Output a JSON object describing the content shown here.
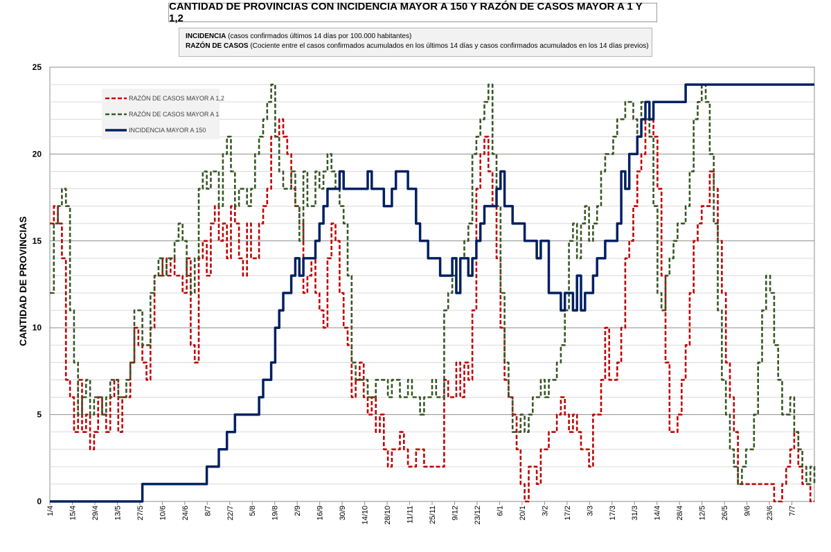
{
  "chart_data": {
    "type": "line",
    "title": "CANTIDAD DE PROVINCIAS CON INCIDENCIA MAYOR A 150 Y RAZÓN DE CASOS MAYOR A 1 Y 1,2",
    "notes": {
      "incidencia_name": "INCIDENCIA",
      "incidencia_desc": " (casos confirmados últimos 14 días por 100.000  habitantes)",
      "razon_name": "RAZÓN DE CASOS",
      "razon_desc": " (Cociente entre el casos confirmados acumulados en los últimos 14 días y casos confirmados acumulados en los 14 días previos)"
    },
    "xlabel": "",
    "ylabel": "CANTIDAD DE PROVINCIAS",
    "ylim": [
      0,
      25
    ],
    "yticks": [
      0,
      5,
      10,
      15,
      20,
      25
    ],
    "grid": true,
    "legend_position": "top-left",
    "x_tick_labels": [
      "1/4",
      "15/4",
      "29/4",
      "13/5",
      "27/5",
      "10/6",
      "24/6",
      "8/7",
      "22/7",
      "5/8",
      "19/8",
      "2/9",
      "16/9",
      "30/9",
      "14/10",
      "28/10",
      "11/11",
      "25/11",
      "9/12",
      "23/12",
      "6/1",
      "20/1",
      "3/2",
      "17/2",
      "3/3",
      "17/3",
      "31/3",
      "14/4",
      "28/4",
      "12/5",
      "26/5",
      "9/6",
      "23/6",
      "7/7"
    ],
    "series": [
      {
        "name": "RAZÓN DE CASOS MAYOR A 1,2",
        "color": "#c00000",
        "dash": "dashed",
        "values": [
          16,
          17,
          16,
          14,
          7,
          6,
          4,
          7,
          4,
          5,
          3,
          4,
          6,
          5,
          4,
          6,
          7,
          4,
          6,
          6,
          8,
          10,
          9,
          8,
          7,
          10,
          13,
          13,
          14,
          13,
          14,
          13,
          13,
          12,
          14,
          9,
          8,
          14,
          15,
          13,
          16,
          17,
          15,
          16,
          14,
          17,
          16,
          14,
          13,
          16,
          14,
          14,
          16,
          17,
          18,
          21,
          21,
          22,
          21,
          20,
          18,
          17,
          16,
          12,
          13,
          14,
          12,
          11,
          10,
          14,
          16,
          15,
          12,
          10,
          9,
          6,
          7,
          8,
          6,
          5,
          6,
          4,
          5,
          3,
          2,
          3,
          3,
          4,
          3,
          2,
          2,
          3,
          3,
          2,
          2,
          2,
          2,
          2,
          7,
          6,
          6,
          8,
          6,
          8,
          7,
          11,
          18,
          20,
          21,
          19,
          17,
          14,
          10,
          7,
          6,
          5,
          3,
          1,
          0,
          2,
          2,
          1,
          3,
          3,
          4,
          4,
          5,
          6,
          5,
          4,
          5,
          4,
          3,
          3,
          2,
          5,
          5,
          7,
          10,
          7,
          7,
          8,
          10,
          14,
          15,
          17,
          19,
          20,
          22,
          22,
          21,
          18,
          13,
          8,
          4,
          4,
          5,
          7,
          9,
          12,
          15,
          16,
          17,
          17,
          19,
          18,
          15,
          12,
          8,
          6,
          4,
          1,
          1,
          1,
          1,
          1,
          1,
          1,
          1,
          1,
          0,
          0,
          1,
          2,
          3,
          4,
          2,
          1,
          1,
          0,
          0
        ]
      },
      {
        "name": "RAZÓN DE CASOS MAYOR A 1",
        "color": "#375623",
        "dash": "dashed",
        "values": [
          12,
          16,
          17,
          18,
          17,
          11,
          8,
          5,
          6,
          7,
          5,
          6,
          6,
          5,
          6,
          7,
          7,
          6,
          6,
          7,
          8,
          11,
          11,
          9,
          9,
          12,
          13,
          14,
          13,
          14,
          14,
          15,
          16,
          15,
          13,
          12,
          14,
          18,
          19,
          18,
          19,
          19,
          17,
          20,
          21,
          19,
          17,
          18,
          18,
          17,
          18,
          20,
          21,
          22,
          23,
          24,
          21,
          19,
          18,
          18,
          19,
          17,
          15,
          19,
          17,
          17,
          19,
          18,
          19,
          20,
          19,
          18,
          17,
          16,
          13,
          8,
          7,
          7,
          7,
          6,
          6,
          7,
          7,
          7,
          6,
          7,
          7,
          6,
          6,
          7,
          6,
          6,
          5,
          6,
          6,
          7,
          6,
          6,
          11,
          12,
          13,
          14,
          14,
          15,
          16,
          20,
          21,
          22,
          23,
          24,
          20,
          17,
          12,
          8,
          6,
          4,
          4,
          5,
          4,
          5,
          6,
          6,
          7,
          6,
          7,
          7,
          8,
          9,
          11,
          15,
          16,
          14,
          16,
          17,
          15,
          16,
          17,
          19,
          20,
          20,
          21,
          22,
          22,
          23,
          23,
          22,
          21,
          23,
          22,
          21,
          17,
          12,
          11,
          13,
          14,
          15,
          16,
          16,
          17,
          19,
          22,
          23,
          24,
          23,
          20,
          16,
          11,
          7,
          5,
          3,
          2,
          1,
          2,
          3,
          3,
          5,
          8,
          11,
          13,
          12,
          9,
          7,
          5,
          5,
          6,
          4,
          3,
          2,
          1,
          2,
          1
        ]
      },
      {
        "name": "INCIDENCIA MAYOR A 150",
        "color": "#002060",
        "dash": "solid",
        "values": [
          0,
          0,
          0,
          0,
          0,
          0,
          0,
          0,
          0,
          0,
          0,
          0,
          0,
          0,
          0,
          0,
          0,
          0,
          0,
          0,
          0,
          0,
          0,
          1,
          1,
          1,
          1,
          1,
          1,
          1,
          1,
          1,
          1,
          1,
          1,
          1,
          1,
          1,
          1,
          2,
          2,
          2,
          3,
          3,
          4,
          4,
          5,
          5,
          5,
          5,
          5,
          5,
          6,
          7,
          7,
          8,
          10,
          11,
          12,
          12,
          13,
          14,
          13,
          14,
          14,
          14,
          15,
          16,
          17,
          18,
          18,
          18,
          19,
          18,
          18,
          18,
          18,
          18,
          18,
          19,
          18,
          18,
          18,
          17,
          17,
          18,
          19,
          19,
          19,
          18,
          18,
          16,
          15,
          15,
          14,
          14,
          14,
          13,
          13,
          13,
          14,
          12,
          14,
          14,
          13,
          14,
          15,
          16,
          17,
          17,
          17,
          18,
          19,
          17,
          17,
          16,
          16,
          16,
          15,
          15,
          15,
          14,
          15,
          15,
          12,
          12,
          12,
          11,
          12,
          12,
          11,
          13,
          11,
          12,
          12,
          13,
          14,
          14,
          15,
          15,
          15,
          16,
          19,
          18,
          20,
          20,
          21,
          22,
          23,
          22,
          23,
          23,
          23,
          23,
          23,
          23,
          23,
          23,
          24,
          24,
          24,
          24,
          24,
          24,
          24,
          24,
          24,
          24,
          24,
          24,
          24,
          24,
          24,
          24,
          24,
          24,
          24,
          24,
          24,
          24,
          24,
          24,
          24,
          24,
          24,
          24,
          24,
          24,
          24,
          24,
          24
        ]
      }
    ]
  }
}
